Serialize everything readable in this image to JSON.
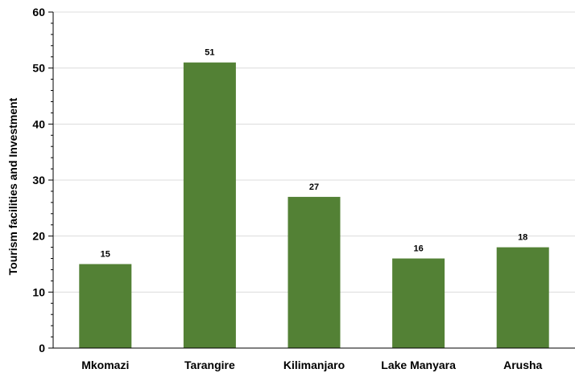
{
  "chart_data": {
    "type": "bar",
    "categories": [
      "Mkomazi",
      "Tarangire",
      "Kilimanjaro",
      "Lake Manyara",
      "Arusha"
    ],
    "values": [
      15,
      51,
      27,
      16,
      18
    ],
    "data_labels": [
      "15",
      "51",
      "27",
      "16",
      "18"
    ],
    "title": "",
    "xlabel": "",
    "ylabel": "Tourism facilities and Investment",
    "ylim": [
      0,
      60
    ],
    "yticks": [
      0,
      10,
      20,
      30,
      40,
      50,
      60
    ],
    "ytick_labels": [
      "0",
      "10",
      "20",
      "30",
      "40",
      "50",
      "60"
    ],
    "grid": true,
    "legend": "none",
    "colors": {
      "bar": "#538135",
      "grid": "#dcdcdc",
      "axis": "#000000"
    }
  }
}
